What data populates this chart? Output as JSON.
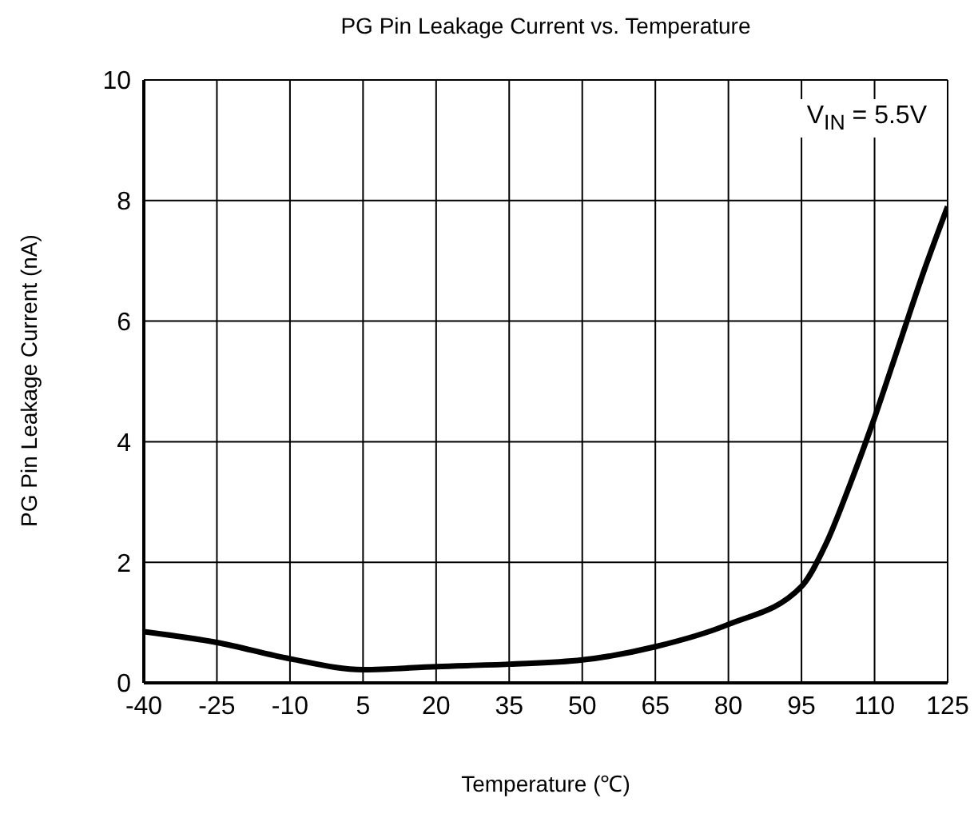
{
  "chart_data": {
    "type": "line",
    "title": "PG Pin Leakage Current vs. Temperature",
    "xlabel": "Temperature (℃)",
    "ylabel": "PG Pin Leakage Current (nA)",
    "x": [
      -40,
      -25,
      -10,
      5,
      20,
      35,
      50,
      65,
      80,
      95,
      100,
      105,
      110,
      115,
      120,
      125
    ],
    "series": [
      {
        "color": "#000000",
        "values": [
          0.85,
          0.67,
          0.4,
          0.22,
          0.27,
          0.31,
          0.38,
          0.6,
          0.97,
          1.6,
          2.3,
          3.3,
          4.4,
          5.6,
          6.8,
          7.9
        ]
      }
    ],
    "xlim": [
      -40,
      125
    ],
    "xticks": [
      -40,
      -25,
      -10,
      5,
      20,
      35,
      50,
      65,
      80,
      95,
      110,
      125
    ],
    "ylim": [
      0,
      10
    ],
    "yticks": [
      0,
      2,
      4,
      6,
      8,
      10
    ],
    "grid": true,
    "marker": "none",
    "line_style": "solid",
    "annotations": [
      "V$_{IN}$ = 5.5V"
    ]
  }
}
